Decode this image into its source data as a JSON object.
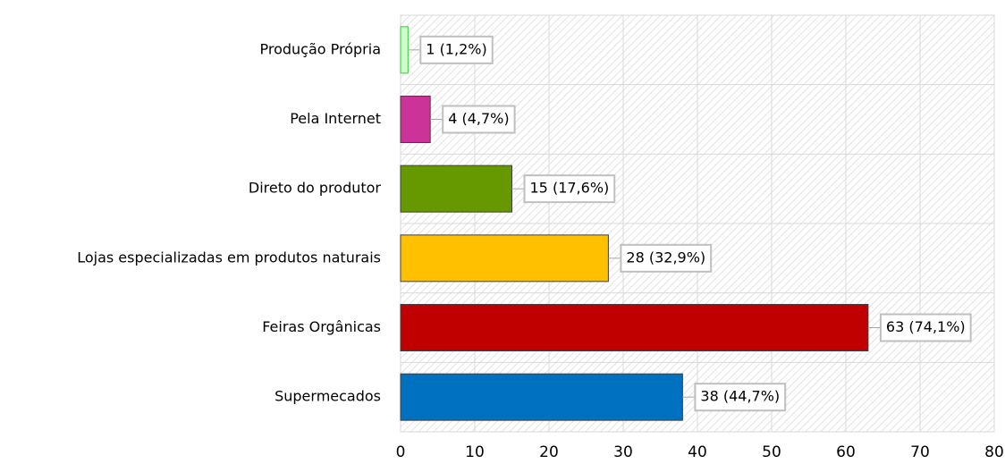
{
  "chart_data": {
    "type": "bar",
    "orientation": "horizontal",
    "categories": [
      "Produção Própria",
      "Pela Internet",
      "Direto do produtor",
      "Lojas especializadas em produtos naturais",
      "Feiras Orgânicas",
      "Supermecados"
    ],
    "values": [
      1,
      4,
      15,
      28,
      63,
      38
    ],
    "value_labels": [
      "1 (1,2%)",
      "4 (4,7%)",
      "15 (17,6%)",
      "28 (32,9%)",
      "63 (74,1%)",
      "38 (44,7%)"
    ],
    "colors": [
      "#ccffcc",
      "#cc3399",
      "#669900",
      "#ffc000",
      "#c00000",
      "#0070c0"
    ],
    "xlim": [
      0,
      80
    ],
    "xticks": [
      0,
      10,
      20,
      30,
      40,
      50,
      60,
      70,
      80
    ],
    "grid": true
  }
}
